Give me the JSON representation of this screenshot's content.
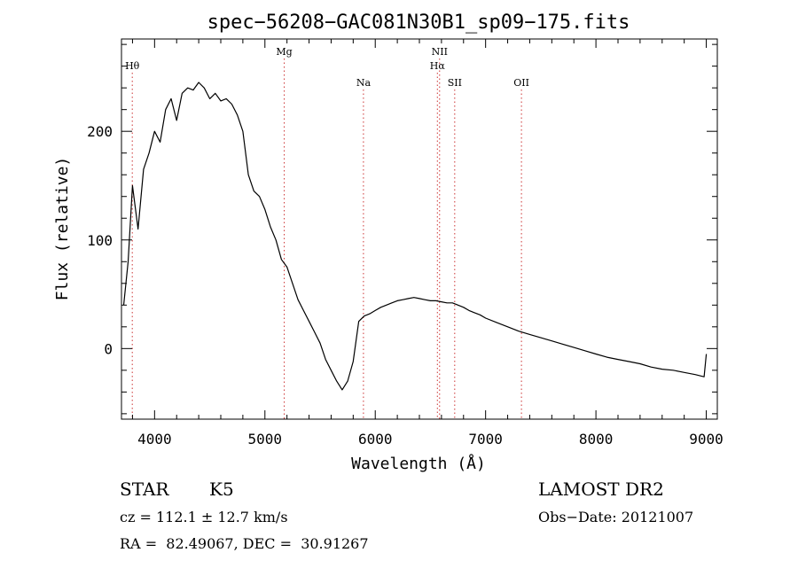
{
  "chart_data": {
    "type": "line",
    "title": "spec−56208−GAC081N30B1_sp09−175.fits",
    "xlabel": "Wavelength (Å)",
    "ylabel": "Flux (relative)",
    "xlim": [
      3700,
      9100
    ],
    "ylim": [
      -65,
      285
    ],
    "x_ticks": [
      4000,
      5000,
      6000,
      7000,
      8000,
      9000
    ],
    "x_tick_labels": [
      "4000",
      "5000",
      "6000",
      "7000",
      "8000",
      "9000"
    ],
    "y_ticks": [
      0,
      100,
      200
    ],
    "y_tick_labels": [
      "0",
      "100",
      "200"
    ],
    "grid": false,
    "line_color": "#000000",
    "marker_color": "#cc3333",
    "spectral_lines": [
      {
        "label": "Hθ",
        "wavelength": 3798,
        "label_row": 1
      },
      {
        "label": "Mg",
        "wavelength": 5175,
        "label_row": 0
      },
      {
        "label": "Na",
        "wavelength": 5893,
        "label_row": 2
      },
      {
        "label": "NII",
        "wavelength": 6583,
        "label_row": 0
      },
      {
        "label": "Hα",
        "wavelength": 6563,
        "label_row": 1
      },
      {
        "label": "SII",
        "wavelength": 6720,
        "label_row": 2
      },
      {
        "label": "OII",
        "wavelength": 7325,
        "label_row": 2
      }
    ],
    "series": [
      {
        "x": [
          3720,
          3760,
          3800,
          3850,
          3900,
          3950,
          4000,
          4050,
          4100,
          4150,
          4200,
          4250,
          4300,
          4350,
          4400,
          4450,
          4500,
          4550,
          4600,
          4650,
          4700,
          4750,
          4800,
          4850,
          4900,
          4950,
          5000,
          5050,
          5100,
          5150,
          5200,
          5250,
          5300,
          5350,
          5400,
          5450,
          5500,
          5550,
          5600,
          5650,
          5700,
          5750,
          5800,
          5850,
          5900,
          5950,
          6000,
          6050,
          6100,
          6150,
          6200,
          6250,
          6300,
          6350,
          6400,
          6450,
          6500,
          6550,
          6600,
          6650,
          6700,
          6750,
          6800,
          6850,
          6900,
          6950,
          7000,
          7100,
          7200,
          7300,
          7400,
          7500,
          7600,
          7700,
          7800,
          7900,
          8000,
          8100,
          8200,
          8300,
          8400,
          8500,
          8600,
          8700,
          8800,
          8900,
          8980,
          9000
        ],
        "y": [
          40,
          80,
          150,
          110,
          165,
          180,
          200,
          190,
          220,
          230,
          210,
          235,
          240,
          238,
          245,
          240,
          230,
          235,
          228,
          230,
          225,
          215,
          200,
          160,
          145,
          140,
          128,
          112,
          100,
          82,
          75,
          60,
          45,
          35,
          25,
          15,
          5,
          -10,
          -20,
          -30,
          -38,
          -30,
          -12,
          25,
          30,
          32,
          35,
          38,
          40,
          42,
          44,
          45,
          46,
          47,
          46,
          45,
          44,
          44,
          43,
          42,
          42,
          40,
          38,
          35,
          33,
          31,
          28,
          24,
          20,
          16,
          13,
          10,
          7,
          4,
          1,
          -2,
          -5,
          -8,
          -10,
          -12,
          -14,
          -17,
          -19,
          -20,
          -22,
          -24,
          -26,
          -5
        ]
      }
    ]
  },
  "info": {
    "object_class": "STAR",
    "subclass": "K5",
    "survey": "LAMOST DR2",
    "redshift": "cz = 112.1 ± 12.7 km/s",
    "obs_date": "Obs−Date: 20121007",
    "coords": "RA =  82.49067, DEC =  30.91267"
  }
}
